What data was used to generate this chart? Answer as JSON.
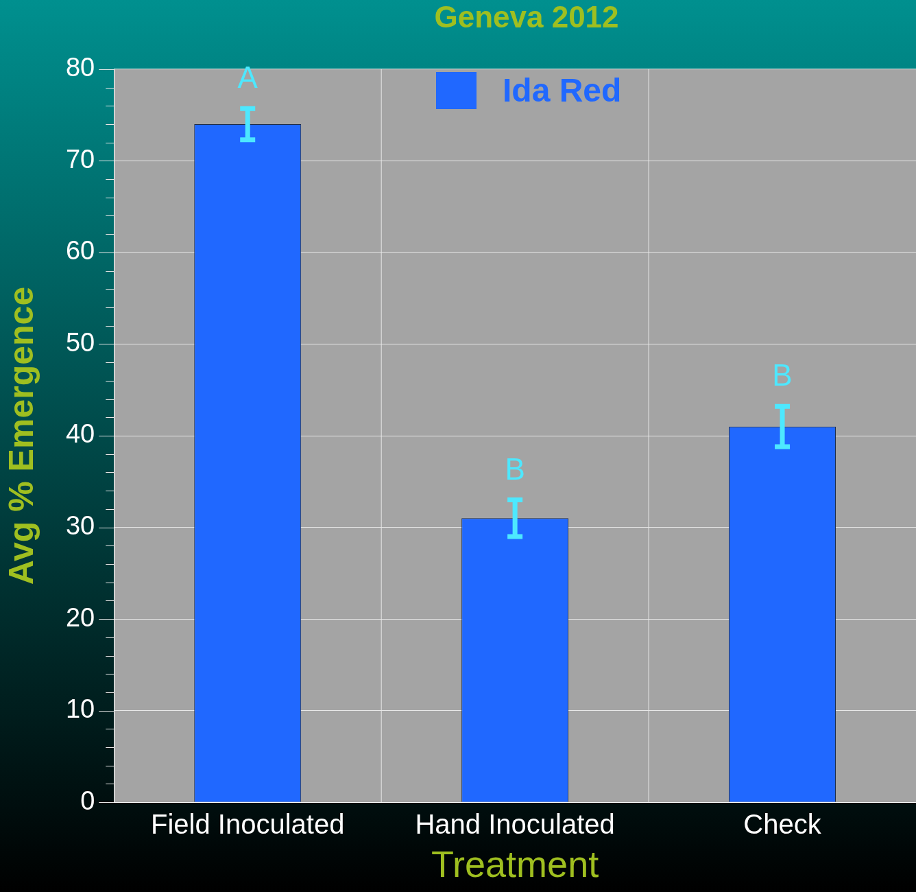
{
  "chart_data": {
    "type": "bar",
    "title": "Geneva 2012",
    "xlabel": "Treatment",
    "ylabel": "Avg % Emergence",
    "categories": [
      "Field Inoculated",
      "Hand Inoculated",
      "Check"
    ],
    "series": [
      {
        "name": "Ida Red",
        "color": "#2068ff",
        "values": [
          74,
          31,
          41
        ],
        "errors": [
          1.7,
          2,
          2.2
        ]
      }
    ],
    "ylim": [
      0,
      80
    ],
    "yticks": [
      0,
      {
        "value": 2,
        "label": null
      },
      {
        "value": 4,
        "label": null
      },
      {
        "value": 6,
        "label": null
      },
      {
        "value": 8,
        "label": null
      },
      10,
      {
        "value": 12,
        "label": null
      },
      {
        "value": 14,
        "label": null
      },
      {
        "value": 16,
        "label": null
      },
      {
        "value": 18,
        "label": null
      },
      20,
      {
        "value": 22,
        "label": null
      },
      {
        "value": 24,
        "label": null
      },
      {
        "value": 26,
        "label": null
      },
      {
        "value": 28,
        "label": null
      },
      30,
      {
        "value": 32,
        "label": null
      },
      {
        "value": 34,
        "label": null
      },
      {
        "value": 36,
        "label": null
      },
      {
        "value": 38,
        "label": null
      },
      40,
      {
        "value": 42,
        "label": null
      },
      {
        "value": 44,
        "label": null
      },
      {
        "value": 46,
        "label": null
      },
      {
        "value": 48,
        "label": null
      },
      50,
      {
        "value": 52,
        "label": null
      },
      {
        "value": 54,
        "label": null
      },
      {
        "value": 56,
        "label": null
      },
      {
        "value": 58,
        "label": null
      },
      60,
      {
        "value": 62,
        "label": null
      },
      {
        "value": 64,
        "label": null
      },
      {
        "value": 66,
        "label": null
      },
      {
        "value": 68,
        "label": null
      },
      70,
      {
        "value": 72,
        "label": null
      },
      {
        "value": 74,
        "label": null
      },
      {
        "value": 76,
        "label": null
      },
      {
        "value": 78,
        "label": null
      },
      80
    ],
    "annotations": [
      "A",
      "B",
      "B"
    ],
    "grid": true,
    "legend": "top"
  }
}
